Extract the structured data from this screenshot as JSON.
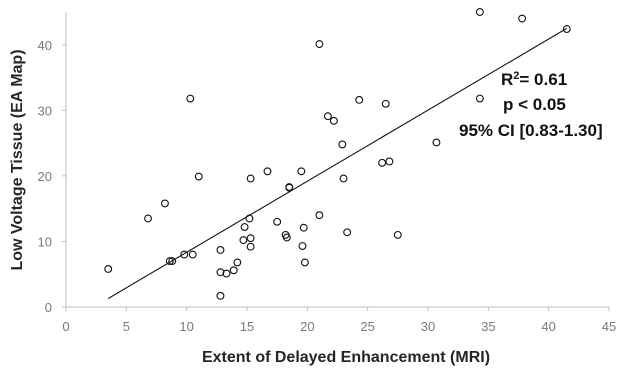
{
  "chart_data": {
    "type": "scatter",
    "xlabel": "Extent of Delayed Enhancement (MRI)",
    "ylabel": "Low Voltage Tissue (EA Map)",
    "xlim": [
      0,
      45
    ],
    "ylim": [
      0,
      45
    ],
    "x_ticks": [
      0,
      5,
      10,
      15,
      20,
      25,
      30,
      35,
      40,
      45
    ],
    "y_ticks": [
      0,
      10,
      20,
      30,
      40
    ],
    "grid": false,
    "legend": "none",
    "annotations": {
      "r2_prefix": "R",
      "r2_sup": "2",
      "r2_value": "= 0.61",
      "p_value": "p  < 0.05",
      "ci": "95% CI [0.83-1.30]"
    },
    "trendline": {
      "x": [
        3.5,
        41.5
      ],
      "y": [
        1.3,
        42.5
      ]
    },
    "points": [
      {
        "x": 3.5,
        "y": 5.8
      },
      {
        "x": 6.8,
        "y": 13.5
      },
      {
        "x": 8.2,
        "y": 15.8
      },
      {
        "x": 8.6,
        "y": 7.0
      },
      {
        "x": 8.8,
        "y": 7.0
      },
      {
        "x": 9.8,
        "y": 8.0
      },
      {
        "x": 10.3,
        "y": 31.8
      },
      {
        "x": 10.5,
        "y": 8.0
      },
      {
        "x": 11.0,
        "y": 19.9
      },
      {
        "x": 12.8,
        "y": 8.7
      },
      {
        "x": 12.8,
        "y": 5.3
      },
      {
        "x": 12.8,
        "y": 1.7
      },
      {
        "x": 13.3,
        "y": 5.1
      },
      {
        "x": 13.9,
        "y": 5.6
      },
      {
        "x": 14.2,
        "y": 6.8
      },
      {
        "x": 14.7,
        "y": 10.2
      },
      {
        "x": 14.8,
        "y": 12.2
      },
      {
        "x": 15.2,
        "y": 13.5
      },
      {
        "x": 15.3,
        "y": 10.5
      },
      {
        "x": 15.3,
        "y": 9.2
      },
      {
        "x": 15.3,
        "y": 19.6
      },
      {
        "x": 16.7,
        "y": 20.7
      },
      {
        "x": 17.5,
        "y": 13.0
      },
      {
        "x": 18.2,
        "y": 11.0
      },
      {
        "x": 18.3,
        "y": 10.6
      },
      {
        "x": 18.5,
        "y": 18.3
      },
      {
        "x": 18.5,
        "y": 18.2
      },
      {
        "x": 19.5,
        "y": 20.7
      },
      {
        "x": 19.6,
        "y": 9.3
      },
      {
        "x": 19.7,
        "y": 12.1
      },
      {
        "x": 19.8,
        "y": 6.8
      },
      {
        "x": 21.0,
        "y": 40.1
      },
      {
        "x": 21.0,
        "y": 14.0
      },
      {
        "x": 21.7,
        "y": 29.1
      },
      {
        "x": 22.2,
        "y": 28.4
      },
      {
        "x": 22.9,
        "y": 24.8
      },
      {
        "x": 23.0,
        "y": 19.6
      },
      {
        "x": 23.3,
        "y": 11.4
      },
      {
        "x": 24.3,
        "y": 31.6
      },
      {
        "x": 26.2,
        "y": 22.0
      },
      {
        "x": 26.5,
        "y": 31.0
      },
      {
        "x": 26.8,
        "y": 22.2
      },
      {
        "x": 27.5,
        "y": 11.0
      },
      {
        "x": 30.7,
        "y": 25.1
      },
      {
        "x": 34.3,
        "y": 45.0
      },
      {
        "x": 34.3,
        "y": 31.8
      },
      {
        "x": 37.8,
        "y": 44.0
      },
      {
        "x": 41.5,
        "y": 42.4
      }
    ]
  }
}
